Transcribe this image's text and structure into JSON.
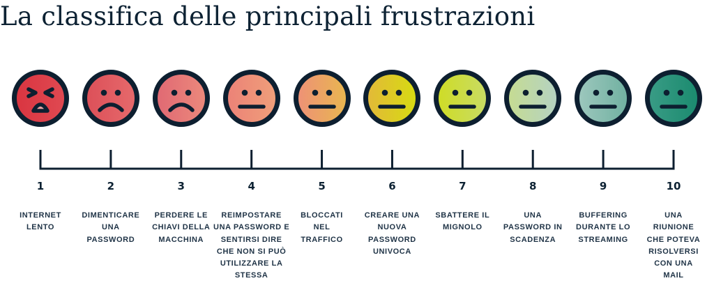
{
  "title": "La classifica delle principali frustrazioni",
  "outline_color": "#0d1f30",
  "items": [
    {
      "rank": "1",
      "label": "INTERNET\nLENTO",
      "expression": "angry-crying",
      "colors": [
        "#d93440",
        "#e04a52"
      ]
    },
    {
      "rank": "2",
      "label": "DIMENTICARE\nUNA\nPASSWORD",
      "expression": "sad",
      "colors": [
        "#dc4f58",
        "#e66a6c"
      ]
    },
    {
      "rank": "3",
      "label": "PERDERE LE\nCHIAVI DELLA\nMACCHINA",
      "expression": "sad",
      "colors": [
        "#e06873",
        "#ec8a7c"
      ]
    },
    {
      "rank": "4",
      "label": "REIMPOSTARE\nUNA PASSWORD E\nSENTIRSI DIRE\nCHE NON SI PUÒ\nUTILIZZARE LA\nSTESSA",
      "expression": "neutral",
      "colors": [
        "#eb8177",
        "#f0a07a"
      ]
    },
    {
      "rank": "5",
      "label": "BLOCCATI\nNEL\nTRAFFICO",
      "expression": "neutral",
      "colors": [
        "#ee9078",
        "#e8b84e"
      ]
    },
    {
      "rank": "6",
      "label": "CREARE UNA\nNUOVA\nPASSWORD\nUNIVOCA",
      "expression": "neutral",
      "colors": [
        "#e3b83a",
        "#d6dc10"
      ]
    },
    {
      "rank": "7",
      "label": "SBATTERE IL\nMIGNOLO",
      "expression": "neutral",
      "colors": [
        "#cfdc24",
        "#c8dc66"
      ]
    },
    {
      "rank": "8",
      "label": "UNA\nPASSWORD IN\nSCADENZA",
      "expression": "neutral",
      "colors": [
        "#c6dc90",
        "#b4d2c4"
      ]
    },
    {
      "rank": "9",
      "label": "BUFFERING\nDURANTE LO\nSTREAMING",
      "expression": "neutral",
      "colors": [
        "#9ec8be",
        "#6fb0a0"
      ]
    },
    {
      "rank": "10",
      "label": "UNA\nRIUNIONE\nCHE POTEVA\nRISOLVERSI\nCON UNA\nMAIL",
      "expression": "neutral",
      "colors": [
        "#3a9c86",
        "#1a8a6e"
      ]
    }
  ]
}
